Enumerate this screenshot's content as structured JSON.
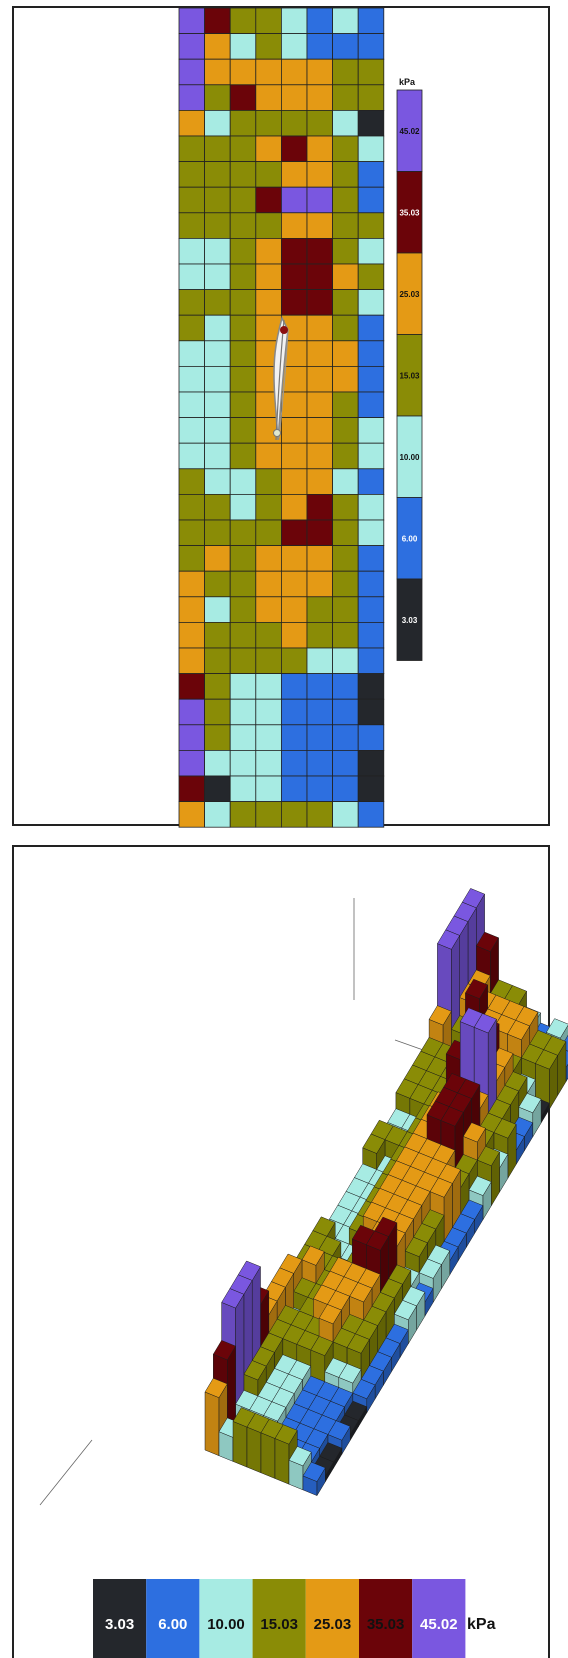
{
  "chart_data": [
    {
      "type": "heatmap",
      "legend_placement": "right",
      "legend_unit": "kPa",
      "colors": {
        "3.03": "#24272c",
        "6.00": "#2d6fe0",
        "10.00": "#a7ebe3",
        "15.03": "#8a8c06",
        "25.03": "#e49a15",
        "35.03": "#6b0409",
        "45.02": "#7a57e0"
      },
      "levels": [
        {
          "label": "45.02",
          "key": "P"
        },
        {
          "label": "35.03",
          "key": "M"
        },
        {
          "label": "25.03",
          "key": "O"
        },
        {
          "label": "15.03",
          "key": "G"
        },
        {
          "label": "10.00",
          "key": "C"
        },
        {
          "label": "6.00",
          "key": "B"
        },
        {
          "label": "3.03",
          "key": "K"
        }
      ],
      "columns": 8,
      "rows": [
        "PMGGCBCB",
        "POCGCBBB",
        "POOOOOGG",
        "PGMOOOGG",
        "OCGGGGCK",
        "GGGOMOGC",
        "GGGGOOGB",
        "GGGMPPGB",
        "GGGGOOGG",
        "CCGOMMGC",
        "CCGOMMOG",
        "GGGOMMGC",
        "GCGOOOGB",
        "CCGOOOOB",
        "CCGOOOOB",
        "CCGOOOGB",
        "CCGOOOGC",
        "CCGOOOGC",
        "GCCGOOCB",
        "GGCGOMGC",
        "GGGGMMGC",
        "GOGOOOGB",
        "OGGOOOGB",
        "OCGOOGGB",
        "OGGGOGGB",
        "OGGGGCCB",
        "MGCCBBBK",
        "PGCCBBBK",
        "PGCCBBBB",
        "PCCCBBBK",
        "MKCCBBBK",
        "OCGGGGCB"
      ]
    },
    {
      "type": "area",
      "subtype": "3d-surface",
      "legend_placement": "bottom",
      "legend_unit": "kPa",
      "legend": [
        "3.03",
        "6.00",
        "10.00",
        "15.03",
        "25.03",
        "35.03",
        "45.02"
      ]
    }
  ]
}
